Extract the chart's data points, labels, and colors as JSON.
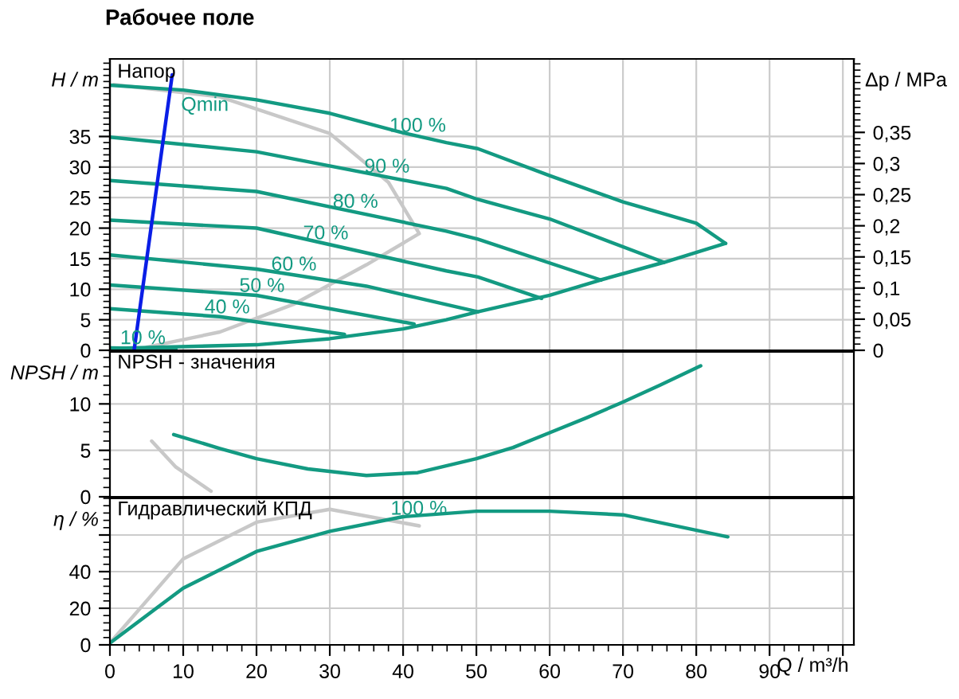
{
  "chart_data": [
    {
      "type": "line",
      "title": "Рабочее поле",
      "ylabel": "H / m",
      "y2label": "Δp / MPa",
      "xlim": [
        0,
        101.5
      ],
      "xticks": [
        0,
        10,
        20,
        30,
        40,
        50,
        60,
        70,
        80,
        90,
        100
      ],
      "ylim": [
        0,
        47.7
      ],
      "yticks": [
        0,
        5,
        10,
        15,
        20,
        25,
        30,
        35
      ],
      "y2lim": [
        0,
        0.468
      ],
      "y2ticks": [
        {
          "value": 0,
          "label": "0"
        },
        {
          "value": 0.05,
          "label": "0,05"
        },
        {
          "value": 0.1,
          "label": "0,1"
        },
        {
          "value": 0.15,
          "label": "0,15"
        },
        {
          "value": 0.2,
          "label": "0,2"
        },
        {
          "value": 0.25,
          "label": "0,25"
        },
        {
          "value": 0.3,
          "label": "0,3"
        },
        {
          "value": 0.35,
          "label": "0,35"
        }
      ],
      "tick_labels": "y",
      "grid": true,
      "legend": false,
      "series": [
        {
          "color": "#c8c8c8",
          "x": [
            0.5,
            15,
            30,
            38,
            42.2,
            35,
            25,
            15,
            5
          ],
          "values": [
            43.5,
            41.5,
            35.5,
            27.5,
            19.1,
            14,
            7.5,
            3,
            0.5
          ]
        },
        {
          "name": "100 %",
          "color": "#139a82",
          "x": [
            0,
            10,
            20,
            30,
            40,
            45.9,
            50.2,
            60,
            70,
            80,
            84
          ],
          "values": [
            43.4,
            42.6,
            41,
            38.8,
            35.6,
            34,
            33,
            28.6,
            24.3,
            20.8,
            17.5
          ]
        },
        {
          "color": "#139a82",
          "x": [
            0,
            20,
            30,
            40,
            45.9,
            50.2,
            60,
            66.9,
            75.6,
            84
          ],
          "values": [
            0.3,
            0.9,
            1.9,
            3.5,
            5,
            6.3,
            9,
            11.5,
            14.4,
            17.5
          ]
        },
        {
          "name": "90 %",
          "color": "#139a82",
          "x": [
            0,
            20,
            45.9,
            50.2,
            60,
            75.6
          ],
          "values": [
            34.9,
            32.5,
            26.5,
            24.7,
            21.5,
            14.4
          ]
        },
        {
          "name": "80 %",
          "color": "#139a82",
          "x": [
            0,
            20,
            45.9,
            50.2,
            67
          ],
          "values": [
            27.8,
            26,
            19.5,
            18.2,
            11.5
          ]
        },
        {
          "name": "70 %",
          "color": "#139a82",
          "x": [
            0,
            20,
            45.9,
            50.2,
            58.9
          ],
          "values": [
            21.3,
            20,
            13,
            12,
            8.5
          ]
        },
        {
          "name": "60 %",
          "color": "#139a82",
          "x": [
            0,
            20,
            35,
            50.2
          ],
          "values": [
            15.6,
            13.3,
            10.5,
            6.3
          ]
        },
        {
          "name": "50 %",
          "color": "#139a82",
          "x": [
            0,
            20,
            41.5
          ],
          "values": [
            10.7,
            9,
            4.3
          ]
        },
        {
          "name": "40 %",
          "color": "#139a82",
          "x": [
            0,
            15,
            32
          ],
          "values": [
            6.8,
            5.5,
            2.6
          ]
        },
        {
          "name": "10 %",
          "color": "#139a82",
          "x": [
            0,
            9
          ],
          "values": [
            0.4,
            0.2
          ]
        },
        {
          "color": "#0a1ee6",
          "x": [
            3.3,
            8.5
          ],
          "values": [
            0,
            45.1
          ]
        }
      ],
      "annotations": [
        "Напор",
        {
          "text": "Qmin",
          "x": 8.5,
          "y": 45.1
        }
      ]
    },
    {
      "type": "line",
      "ylabel": "NPSH / m",
      "xlim": [
        0,
        101.5
      ],
      "xticks": [
        0,
        10,
        20,
        30,
        40,
        50,
        60,
        70,
        80,
        90,
        100
      ],
      "ylim": [
        0,
        15.6
      ],
      "yticks": [
        0,
        5,
        10
      ],
      "tick_labels": "y",
      "grid": true,
      "legend": false,
      "series": [
        {
          "color": "#c8c8c8",
          "x": [
            5.7,
            9,
            13.8
          ],
          "values": [
            6,
            3.2,
            0.6
          ]
        },
        {
          "color": "#139a82",
          "x": [
            8.7,
            15,
            20,
            27,
            35,
            42,
            50,
            55,
            60,
            65,
            70,
            75,
            80.6
          ],
          "values": [
            6.7,
            5.2,
            4.1,
            3.0,
            2.3,
            2.6,
            4.1,
            5.3,
            6.9,
            8.5,
            10.2,
            12.0,
            14.1
          ]
        }
      ],
      "annotations": [
        "NPSH - значения"
      ]
    },
    {
      "type": "line",
      "ylabel": "η / %",
      "xlabel": "Q / m³/h",
      "xlim": [
        0,
        101.5
      ],
      "xticks": [
        0,
        10,
        20,
        30,
        40,
        50,
        60,
        70,
        80,
        90,
        {
          "value": 100,
          "label": null
        }
      ],
      "ylim": [
        0,
        80
      ],
      "yticks": [
        0,
        20,
        40,
        {
          "value": 60,
          "label": null
        }
      ],
      "grid": true,
      "legend": false,
      "series": [
        {
          "color": "#c8c8c8",
          "x": [
            0,
            10,
            20,
            30,
            42.2
          ],
          "values": [
            1,
            47,
            67,
            74,
            65
          ]
        },
        {
          "name": "100 %",
          "color": "#139a82",
          "x": [
            0,
            10,
            20,
            30,
            40,
            50,
            60,
            70,
            84.3
          ],
          "values": [
            1,
            31,
            51,
            62,
            70,
            73,
            73,
            71,
            59
          ]
        }
      ],
      "annotations": [
        "Гидравлический КПД"
      ]
    }
  ]
}
